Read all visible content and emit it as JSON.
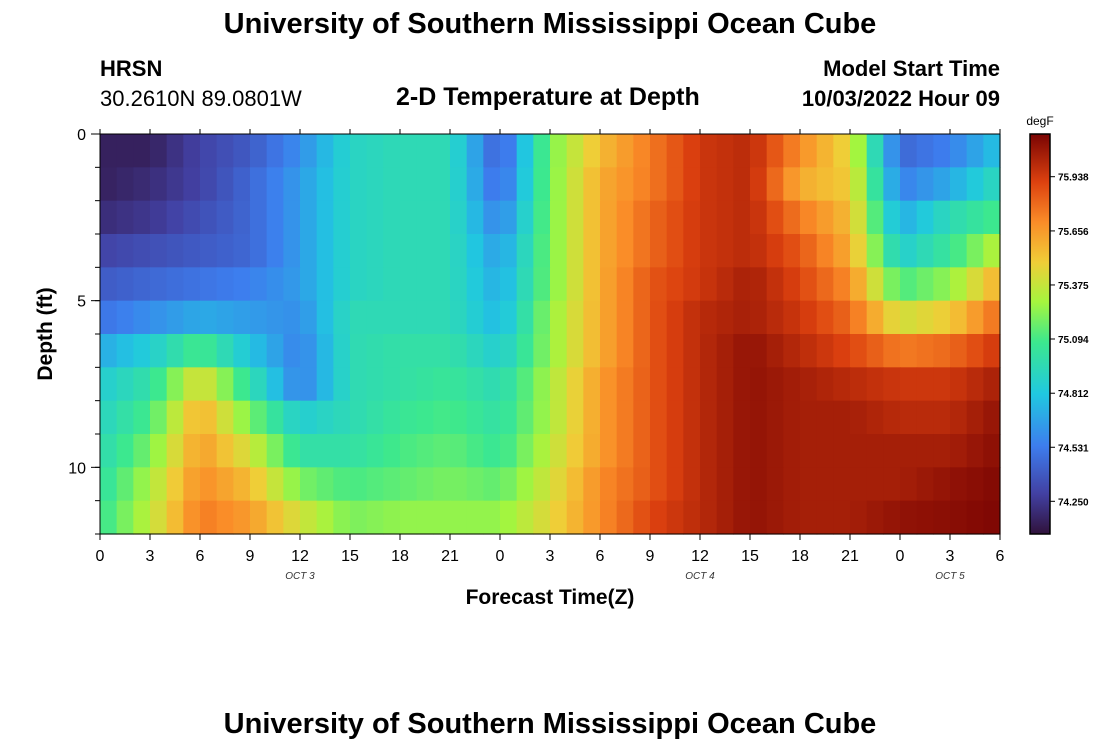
{
  "page": {
    "title_top": "University of Southern Mississippi Ocean Cube",
    "title_bottom": "University of Southern Mississippi Ocean Cube",
    "station": "HRSN",
    "coords": "30.2610N  89.0801W",
    "plot_title": "2-D Temperature at Depth",
    "model_start_label": "Model Start Time",
    "model_start_value": "10/03/2022 Hour 09"
  },
  "chart_data": {
    "type": "heatmap",
    "title": "2-D Temperature at Depth",
    "xlabel": "Forecast Time(Z)",
    "ylabel": "Depth (ft)",
    "x_ticks": [
      "0",
      "3",
      "6",
      "9",
      "12",
      "15",
      "18",
      "21",
      "0",
      "3",
      "6",
      "9",
      "12",
      "15",
      "18",
      "21",
      "0",
      "3",
      "6"
    ],
    "x_range_hours": [
      0,
      54
    ],
    "date_labels": [
      {
        "text": "OCT 3",
        "hour": 12
      },
      {
        "text": "OCT 4",
        "hour": 36
      },
      {
        "text": "OCT 5",
        "hour": 51
      }
    ],
    "y_range_ft": [
      0,
      12
    ],
    "y_ticks": [
      "0",
      "5",
      "10"
    ],
    "y_tick_values": [
      0,
      5,
      10
    ],
    "depth_levels": 12,
    "colorbar": {
      "unit": "degF",
      "min": 74.08,
      "max": 76.16,
      "tick_labels": [
        "75.938",
        "75.656",
        "75.375",
        "75.094",
        "74.812",
        "74.531",
        "74.250"
      ],
      "tick_values": [
        75.938,
        75.656,
        75.375,
        75.094,
        74.812,
        74.531,
        74.25
      ]
    },
    "grid_note": "temperature field sampled hourly (columns) by depth level (rows)",
    "grid_columns_hours": [
      0,
      3,
      6,
      9,
      12,
      15,
      18,
      21,
      24,
      27,
      30,
      33,
      36,
      39,
      42,
      45,
      48,
      51,
      54
    ],
    "grid": [
      [
        74.15,
        74.15,
        74.3,
        74.4,
        74.6,
        74.9,
        74.95,
        74.95,
        74.4,
        75.2,
        75.55,
        75.75,
        75.95,
        76.0,
        75.7,
        75.45,
        74.45,
        74.55,
        74.8
      ],
      [
        74.15,
        74.2,
        74.3,
        74.45,
        74.65,
        74.9,
        74.95,
        74.95,
        74.45,
        75.2,
        75.6,
        75.75,
        75.95,
        76.0,
        75.6,
        75.5,
        74.55,
        74.7,
        74.95
      ],
      [
        74.2,
        74.25,
        74.35,
        74.45,
        74.65,
        74.9,
        74.95,
        74.95,
        74.55,
        75.2,
        75.6,
        75.8,
        75.95,
        76.0,
        75.75,
        75.55,
        74.7,
        74.95,
        75.1
      ],
      [
        74.3,
        74.35,
        74.4,
        74.45,
        74.65,
        74.9,
        74.95,
        74.95,
        74.65,
        75.2,
        75.6,
        75.8,
        75.95,
        76.0,
        75.85,
        75.6,
        74.85,
        75.05,
        75.35
      ],
      [
        74.4,
        74.45,
        74.5,
        74.55,
        74.65,
        74.9,
        74.95,
        74.95,
        74.7,
        75.2,
        75.6,
        75.85,
        75.95,
        76.05,
        75.9,
        75.7,
        75.1,
        75.25,
        75.6
      ],
      [
        74.5,
        74.6,
        74.7,
        74.65,
        74.6,
        74.95,
        74.95,
        74.95,
        74.75,
        75.25,
        75.6,
        75.85,
        76.0,
        76.05,
        75.95,
        75.8,
        75.4,
        75.5,
        75.8
      ],
      [
        74.7,
        74.85,
        75.1,
        74.8,
        74.55,
        74.95,
        75.0,
        75.0,
        74.85,
        75.25,
        75.6,
        75.85,
        76.0,
        76.1,
        76.0,
        75.9,
        75.75,
        75.8,
        75.95
      ],
      [
        74.85,
        75.0,
        75.45,
        75.0,
        74.55,
        74.95,
        75.0,
        75.05,
        74.95,
        75.3,
        75.65,
        75.85,
        76.0,
        76.1,
        76.05,
        76.0,
        75.95,
        75.95,
        76.05
      ],
      [
        74.9,
        75.1,
        75.6,
        75.2,
        74.85,
        74.95,
        75.05,
        75.1,
        75.0,
        75.3,
        75.65,
        75.85,
        76.0,
        76.1,
        76.05,
        76.05,
        76.0,
        76.0,
        76.1
      ],
      [
        74.95,
        75.2,
        75.65,
        75.4,
        75.0,
        75.0,
        75.1,
        75.15,
        75.05,
        75.35,
        75.65,
        75.85,
        76.0,
        76.1,
        76.05,
        76.05,
        76.05,
        76.05,
        76.12
      ],
      [
        75.0,
        75.3,
        75.7,
        75.55,
        75.2,
        75.1,
        75.15,
        75.2,
        75.15,
        75.4,
        75.7,
        75.85,
        76.0,
        76.1,
        76.05,
        76.05,
        76.05,
        76.1,
        76.14
      ],
      [
        75.05,
        75.35,
        75.75,
        75.65,
        75.4,
        75.2,
        75.25,
        75.25,
        75.25,
        75.45,
        75.7,
        75.9,
        76.0,
        76.1,
        76.05,
        76.05,
        76.1,
        76.12,
        76.15
      ]
    ]
  }
}
